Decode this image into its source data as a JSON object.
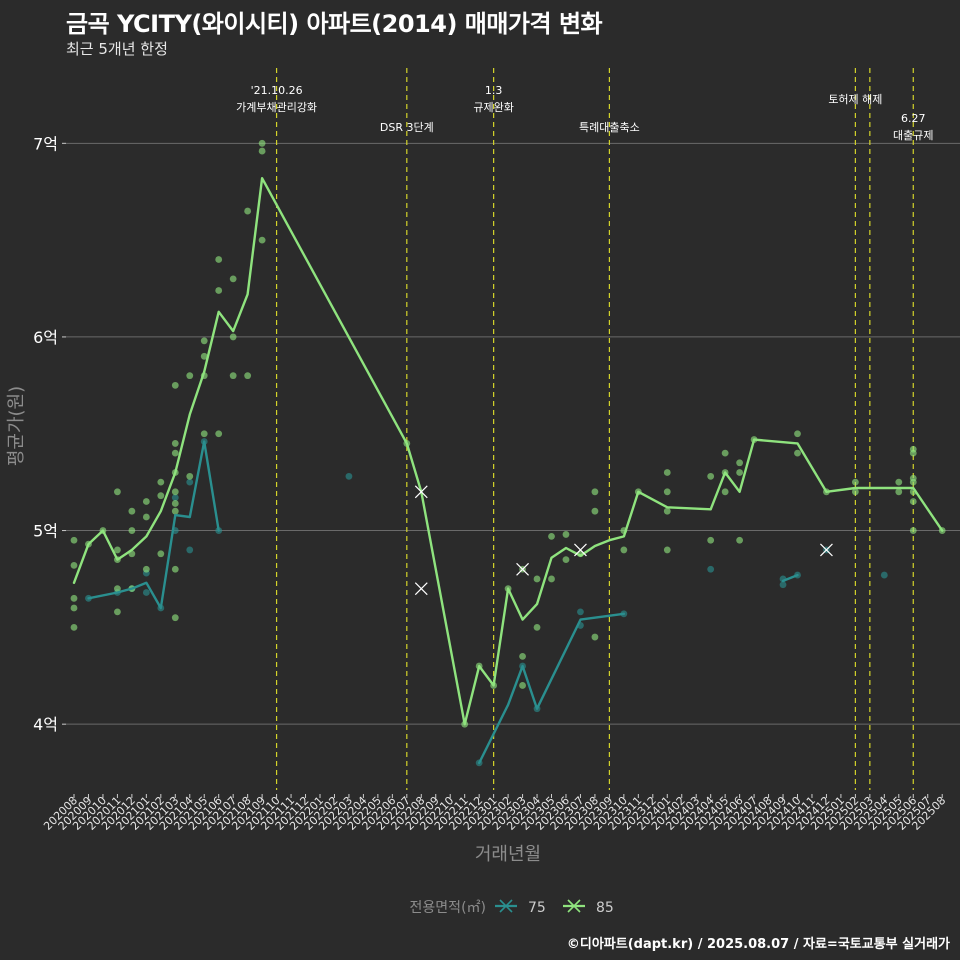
{
  "title": "금곡 YCITY(와이시티) 아파트(2014) 매매가격 변화",
  "subtitle": "최근 5개년 한정",
  "caption": "©디아파트(dapt.kr) / 2025.08.07 / 자료=국토교통부 실거래가",
  "colors": {
    "background": "#2b2b2b",
    "grid": "#6a6a6a",
    "event_line": "#d4d42a",
    "series_75": "#2a8f8f",
    "series_85": "#8fe37e"
  },
  "chart_data": {
    "type": "line",
    "xlabel": "거래년월",
    "ylabel": "평균가(원)",
    "x_categories": [
      "202008",
      "202009",
      "202010",
      "202011",
      "202012",
      "202101",
      "202102",
      "202103",
      "202104",
      "202105",
      "202106",
      "202107",
      "202108",
      "202109",
      "202110",
      "202111",
      "202112",
      "202201",
      "202202",
      "202203",
      "202204",
      "202205",
      "202206",
      "202207",
      "202208",
      "202209",
      "202210",
      "202211",
      "202212",
      "202301",
      "202302",
      "202303",
      "202304",
      "202305",
      "202306",
      "202307",
      "202308",
      "202309",
      "202310",
      "202311",
      "202312",
      "202401",
      "202402",
      "202403",
      "202404",
      "202405",
      "202406",
      "202407",
      "202408",
      "202409",
      "202410",
      "202411",
      "202412",
      "202501",
      "202502",
      "202503",
      "202504",
      "202505",
      "202506",
      "202507",
      "202508"
    ],
    "y_ticks": [
      {
        "value": 4,
        "label": "4억"
      },
      {
        "value": 5,
        "label": "5억"
      },
      {
        "value": 6,
        "label": "6억"
      },
      {
        "value": 7,
        "label": "7억"
      }
    ],
    "ylim": [
      3.66,
      7.42
    ],
    "grid": true,
    "legend": {
      "title": "전용면적(㎡)",
      "position": "bottom"
    },
    "series": [
      {
        "name": "75",
        "color": "#2a8f8f",
        "line": [
          [
            "202009",
            4.65
          ],
          [
            "202011",
            4.68
          ],
          [
            "202012",
            4.7
          ],
          [
            "202101",
            4.73
          ],
          [
            "202102",
            4.6
          ],
          [
            "202103",
            5.08
          ],
          [
            "202104",
            5.07
          ],
          [
            "202105",
            5.46
          ],
          [
            "202106",
            5.0
          ]
        ],
        "line_segments": [
          [
            [
              "202212",
              3.8
            ],
            [
              "202302",
              4.1
            ],
            [
              "202303",
              4.3
            ],
            [
              "202304",
              4.08
            ],
            [
              "202307",
              4.54
            ],
            [
              "202310",
              4.57
            ]
          ],
          [
            [
              "202409",
              4.74
            ],
            [
              "202410",
              4.77
            ]
          ]
        ],
        "points": [
          [
            "202009",
            4.65
          ],
          [
            "202011",
            4.68
          ],
          [
            "202012",
            4.7
          ],
          [
            "202101",
            4.68
          ],
          [
            "202101",
            4.78
          ],
          [
            "202102",
            4.6
          ],
          [
            "202103",
            5.0
          ],
          [
            "202103",
            5.17
          ],
          [
            "202104",
            4.9
          ],
          [
            "202104",
            5.25
          ],
          [
            "202105",
            5.46
          ],
          [
            "202106",
            5.0
          ],
          [
            "202203",
            5.28
          ],
          [
            "202212",
            3.8
          ],
          [
            "202303",
            4.3
          ],
          [
            "202304",
            4.08
          ],
          [
            "202307",
            4.51
          ],
          [
            "202307",
            4.58
          ],
          [
            "202310",
            4.57
          ],
          [
            "202404",
            4.8
          ],
          [
            "202409",
            4.72
          ],
          [
            "202409",
            4.75
          ],
          [
            "202410",
            4.77
          ],
          [
            "202412",
            4.9
          ],
          [
            "202504",
            4.77
          ]
        ],
        "crosses": [
          [
            "202208",
            4.7
          ],
          [
            "202412",
            4.9
          ]
        ]
      },
      {
        "name": "85",
        "color": "#8fe37e",
        "line": [
          [
            "202008",
            4.73
          ],
          [
            "202009",
            4.93
          ],
          [
            "202010",
            5.0
          ],
          [
            "202011",
            4.85
          ],
          [
            "202012",
            4.9
          ],
          [
            "202101",
            4.97
          ],
          [
            "202102",
            5.1
          ],
          [
            "202103",
            5.3
          ],
          [
            "202104",
            5.6
          ],
          [
            "202105",
            5.82
          ],
          [
            "202106",
            6.13
          ],
          [
            "202107",
            6.03
          ],
          [
            "202108",
            6.22
          ],
          [
            "202109",
            6.82
          ],
          [
            "202207",
            5.45
          ],
          [
            "202208",
            5.2
          ],
          [
            "202211",
            4.0
          ],
          [
            "202212",
            4.3
          ],
          [
            "202301",
            4.2
          ],
          [
            "202302",
            4.7
          ],
          [
            "202303",
            4.54
          ],
          [
            "202304",
            4.62
          ],
          [
            "202305",
            4.86
          ],
          [
            "202306",
            4.91
          ],
          [
            "202307",
            4.87
          ],
          [
            "202308",
            4.92
          ],
          [
            "202309",
            4.95
          ],
          [
            "202310",
            4.97
          ],
          [
            "202311",
            5.2
          ],
          [
            "202401",
            5.12
          ],
          [
            "202404",
            5.11
          ],
          [
            "202405",
            5.3
          ],
          [
            "202406",
            5.2
          ],
          [
            "202407",
            5.47
          ],
          [
            "202410",
            5.45
          ],
          [
            "202412",
            5.2
          ],
          [
            "202502",
            5.22
          ],
          [
            "202503",
            5.22
          ],
          [
            "202506",
            5.22
          ],
          [
            "202508",
            5.0
          ]
        ],
        "points": [
          [
            "202008",
            4.95
          ],
          [
            "202008",
            4.82
          ],
          [
            "202008",
            4.65
          ],
          [
            "202008",
            4.6
          ],
          [
            "202008",
            4.5
          ],
          [
            "202009",
            4.93
          ],
          [
            "202010",
            5.0
          ],
          [
            "202011",
            5.2
          ],
          [
            "202011",
            4.9
          ],
          [
            "202011",
            4.85
          ],
          [
            "202011",
            4.7
          ],
          [
            "202011",
            4.58
          ],
          [
            "202012",
            5.1
          ],
          [
            "202012",
            5.0
          ],
          [
            "202012",
            4.88
          ],
          [
            "202012",
            4.7
          ],
          [
            "202101",
            5.15
          ],
          [
            "202101",
            5.07
          ],
          [
            "202101",
            4.8
          ],
          [
            "202102",
            5.25
          ],
          [
            "202102",
            5.18
          ],
          [
            "202102",
            4.88
          ],
          [
            "202103",
            5.75
          ],
          [
            "202103",
            5.45
          ],
          [
            "202103",
            5.4
          ],
          [
            "202103",
            5.3
          ],
          [
            "202103",
            5.2
          ],
          [
            "202103",
            5.14
          ],
          [
            "202103",
            5.1
          ],
          [
            "202103",
            4.8
          ],
          [
            "202103",
            4.55
          ],
          [
            "202104",
            5.8
          ],
          [
            "202104",
            5.28
          ],
          [
            "202105",
            5.98
          ],
          [
            "202105",
            5.9
          ],
          [
            "202105",
            5.8
          ],
          [
            "202105",
            5.5
          ],
          [
            "202106",
            6.4
          ],
          [
            "202106",
            6.24
          ],
          [
            "202106",
            5.5
          ],
          [
            "202107",
            6.3
          ],
          [
            "202107",
            6.0
          ],
          [
            "202107",
            5.8
          ],
          [
            "202108",
            6.65
          ],
          [
            "202108",
            5.8
          ],
          [
            "202109",
            7.0
          ],
          [
            "202109",
            6.96
          ],
          [
            "202109",
            6.5
          ],
          [
            "202207",
            5.45
          ],
          [
            "202211",
            4.0
          ],
          [
            "202212",
            4.3
          ],
          [
            "202301",
            4.2
          ],
          [
            "202302",
            4.7
          ],
          [
            "202303",
            4.8
          ],
          [
            "202303",
            4.35
          ],
          [
            "202303",
            4.2
          ],
          [
            "202304",
            4.75
          ],
          [
            "202304",
            4.5
          ],
          [
            "202305",
            4.97
          ],
          [
            "202305",
            4.75
          ],
          [
            "202306",
            4.98
          ],
          [
            "202306",
            4.85
          ],
          [
            "202307",
            4.88
          ],
          [
            "202308",
            5.2
          ],
          [
            "202308",
            5.1
          ],
          [
            "202308",
            4.45
          ],
          [
            "202310",
            5.0
          ],
          [
            "202310",
            4.9
          ],
          [
            "202311",
            5.2
          ],
          [
            "202401",
            5.3
          ],
          [
            "202401",
            5.2
          ],
          [
            "202401",
            5.1
          ],
          [
            "202401",
            4.9
          ],
          [
            "202404",
            5.28
          ],
          [
            "202404",
            4.95
          ],
          [
            "202405",
            5.4
          ],
          [
            "202405",
            5.3
          ],
          [
            "202405",
            5.2
          ],
          [
            "202406",
            5.35
          ],
          [
            "202406",
            5.3
          ],
          [
            "202406",
            4.95
          ],
          [
            "202407",
            5.47
          ],
          [
            "202410",
            5.5
          ],
          [
            "202410",
            5.4
          ],
          [
            "202412",
            5.2
          ],
          [
            "202502",
            5.25
          ],
          [
            "202502",
            5.2
          ],
          [
            "202505",
            5.25
          ],
          [
            "202505",
            5.2
          ],
          [
            "202506",
            5.42
          ],
          [
            "202506",
            5.4
          ],
          [
            "202506",
            5.27
          ],
          [
            "202506",
            5.25
          ],
          [
            "202506",
            5.2
          ],
          [
            "202506",
            5.15
          ],
          [
            "202506",
            5.0
          ],
          [
            "202508",
            5.0
          ]
        ],
        "crosses": [
          [
            "202208",
            5.2
          ],
          [
            "202303",
            4.8
          ],
          [
            "202307",
            4.9
          ]
        ]
      }
    ],
    "events": [
      {
        "x": "202110",
        "label": [
          "'21.10.26",
          "가계부채관리강화"
        ],
        "tier": 0
      },
      {
        "x": "202207",
        "label": [
          "DSR 3단계"
        ],
        "tier": 1
      },
      {
        "x": "202301",
        "label": [
          "1.3",
          "규제완화"
        ],
        "tier": 0
      },
      {
        "x": "202309",
        "label": [
          "특례대출축소"
        ],
        "tier": 1
      },
      {
        "x": "202502",
        "label": [
          "토허제 해제"
        ],
        "tier": 2
      },
      {
        "x": "202503",
        "label": [],
        "tier": 2
      },
      {
        "x": "202506",
        "label": [
          "6.27",
          "대출규제"
        ],
        "tier": 3
      }
    ]
  }
}
